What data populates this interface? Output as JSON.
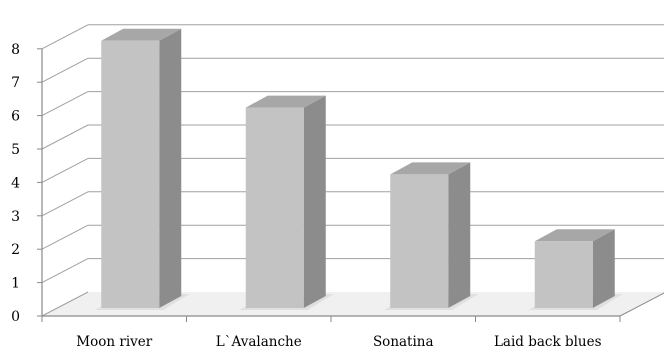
{
  "chart_data": {
    "type": "bar",
    "categories": [
      "Moon river",
      "L`Avalanche",
      "Sonatina",
      "Laid back blues"
    ],
    "values": [
      8,
      6,
      4,
      2
    ],
    "ylim": [
      0,
      8
    ],
    "yticks": [
      0,
      1,
      2,
      3,
      4,
      5,
      6,
      7,
      8
    ],
    "grid": true,
    "legend": "none",
    "colors": {
      "bar_front": "#c3c3c3",
      "bar_top": "#a7a7a7",
      "bar_side": "#8c8c8c",
      "floor": "#f0f0f0",
      "grid": "#a0a0a0",
      "axis": "#8a8a8a"
    }
  }
}
